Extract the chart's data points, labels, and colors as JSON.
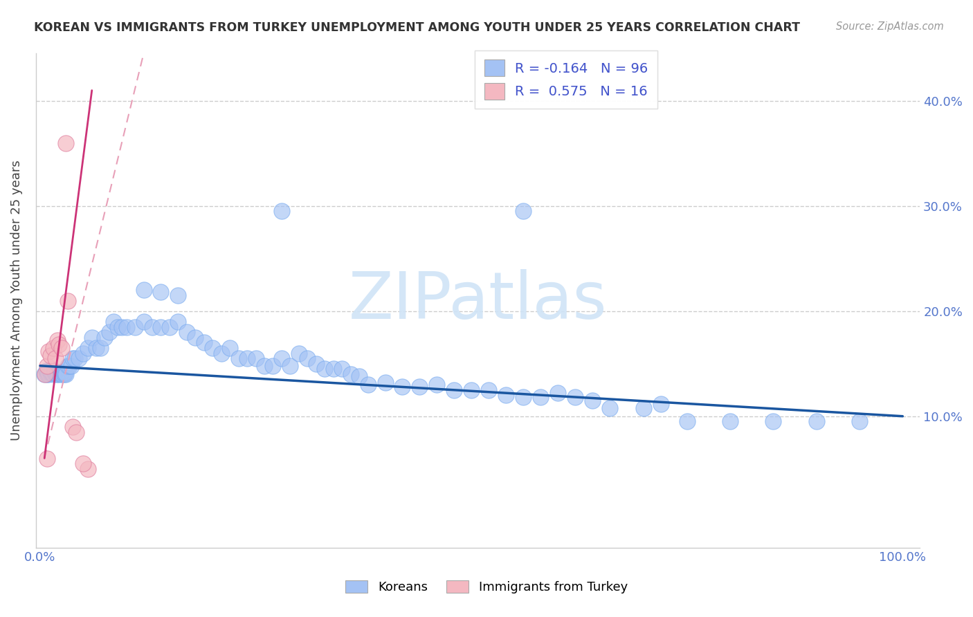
{
  "title": "KOREAN VS IMMIGRANTS FROM TURKEY UNEMPLOYMENT AMONG YOUTH UNDER 25 YEARS CORRELATION CHART",
  "source": "Source: ZipAtlas.com",
  "ylabel": "Unemployment Among Youth under 25 years",
  "watermark": "ZIPatlas",
  "xlim": [
    -0.005,
    1.02
  ],
  "ylim": [
    -0.025,
    0.445
  ],
  "legend_R_blue": "-0.164",
  "legend_N_blue": "96",
  "legend_R_pink": "0.575",
  "legend_N_pink": "16",
  "blue_scatter_x": [
    0.005,
    0.007,
    0.008,
    0.009,
    0.01,
    0.011,
    0.012,
    0.013,
    0.014,
    0.015,
    0.016,
    0.017,
    0.018,
    0.019,
    0.02,
    0.021,
    0.022,
    0.023,
    0.024,
    0.025,
    0.026,
    0.027,
    0.028,
    0.029,
    0.03,
    0.032,
    0.034,
    0.036,
    0.038,
    0.04,
    0.045,
    0.05,
    0.055,
    0.06,
    0.065,
    0.07,
    0.075,
    0.08,
    0.085,
    0.09,
    0.095,
    0.1,
    0.11,
    0.12,
    0.13,
    0.14,
    0.15,
    0.16,
    0.17,
    0.18,
    0.19,
    0.2,
    0.21,
    0.22,
    0.23,
    0.24,
    0.25,
    0.26,
    0.27,
    0.28,
    0.29,
    0.3,
    0.31,
    0.32,
    0.33,
    0.34,
    0.35,
    0.36,
    0.37,
    0.38,
    0.4,
    0.42,
    0.44,
    0.46,
    0.48,
    0.5,
    0.52,
    0.54,
    0.56,
    0.58,
    0.6,
    0.62,
    0.64,
    0.66,
    0.7,
    0.72,
    0.75,
    0.8,
    0.85,
    0.9,
    0.12,
    0.14,
    0.16,
    0.28,
    0.56,
    0.95
  ],
  "blue_scatter_y": [
    0.14,
    0.143,
    0.14,
    0.142,
    0.14,
    0.143,
    0.141,
    0.142,
    0.141,
    0.14,
    0.143,
    0.141,
    0.142,
    0.14,
    0.142,
    0.14,
    0.141,
    0.141,
    0.14,
    0.142,
    0.14,
    0.141,
    0.14,
    0.141,
    0.14,
    0.148,
    0.148,
    0.148,
    0.155,
    0.155,
    0.155,
    0.16,
    0.165,
    0.175,
    0.165,
    0.165,
    0.175,
    0.18,
    0.19,
    0.185,
    0.185,
    0.185,
    0.185,
    0.19,
    0.185,
    0.185,
    0.185,
    0.19,
    0.18,
    0.175,
    0.17,
    0.165,
    0.16,
    0.165,
    0.155,
    0.155,
    0.155,
    0.148,
    0.148,
    0.155,
    0.148,
    0.16,
    0.155,
    0.15,
    0.145,
    0.145,
    0.145,
    0.14,
    0.138,
    0.13,
    0.132,
    0.128,
    0.128,
    0.13,
    0.125,
    0.125,
    0.125,
    0.12,
    0.118,
    0.118,
    0.122,
    0.118,
    0.115,
    0.108,
    0.108,
    0.112,
    0.095,
    0.095,
    0.095,
    0.095,
    0.22,
    0.218,
    0.215,
    0.295,
    0.295,
    0.095
  ],
  "pink_scatter_x": [
    0.006,
    0.008,
    0.01,
    0.012,
    0.015,
    0.018,
    0.02,
    0.022,
    0.025,
    0.03,
    0.032,
    0.038,
    0.042,
    0.055,
    0.05,
    0.008
  ],
  "pink_scatter_y": [
    0.14,
    0.148,
    0.162,
    0.158,
    0.165,
    0.155,
    0.172,
    0.168,
    0.165,
    0.36,
    0.21,
    0.09,
    0.085,
    0.05,
    0.055,
    0.06
  ],
  "blue_line_x0": 0.0,
  "blue_line_x1": 1.0,
  "blue_line_y0": 0.148,
  "blue_line_y1": 0.1,
  "pink_line_x0": 0.005,
  "pink_line_x1": 0.06,
  "pink_line_y0": 0.06,
  "pink_line_y1": 0.41,
  "pink_line_dashed_x0": 0.005,
  "pink_line_dashed_x1": 0.12,
  "pink_line_dashed_y0": 0.06,
  "pink_line_dashed_y1": 0.445,
  "blue_color": "#a4c2f4",
  "pink_color": "#f4b8c1",
  "blue_line_color": "#1a56a0",
  "pink_line_color": "#cc3377",
  "pink_dashed_color": "#e8a0b8"
}
